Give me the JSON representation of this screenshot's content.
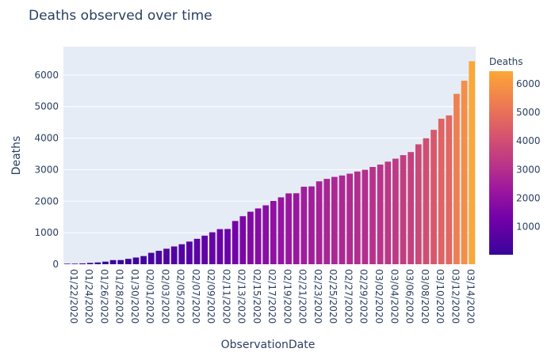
{
  "chart_data": {
    "type": "bar",
    "title": "Deaths observed over time",
    "xlabel": "ObservationDate",
    "ylabel": "Deaths",
    "colorbar_title": "Deaths",
    "ylim": [
      0,
      6900
    ],
    "yticks": [
      0,
      1000,
      2000,
      3000,
      4000,
      5000,
      6000
    ],
    "grid": true,
    "categories": [
      "01/22/2020",
      "01/23/2020",
      "01/24/2020",
      "01/25/2020",
      "01/26/2020",
      "01/27/2020",
      "01/28/2020",
      "01/29/2020",
      "01/30/2020",
      "01/31/2020",
      "02/01/2020",
      "02/02/2020",
      "02/03/2020",
      "02/04/2020",
      "02/05/2020",
      "02/06/2020",
      "02/07/2020",
      "02/08/2020",
      "02/09/2020",
      "02/10/2020",
      "02/11/2020",
      "02/12/2020",
      "02/13/2020",
      "02/14/2020",
      "02/15/2020",
      "02/16/2020",
      "02/17/2020",
      "02/18/2020",
      "02/19/2020",
      "02/20/2020",
      "02/21/2020",
      "02/22/2020",
      "02/23/2020",
      "02/24/2020",
      "02/25/2020",
      "02/26/2020",
      "02/27/2020",
      "02/28/2020",
      "02/29/2020",
      "03/01/2020",
      "03/02/2020",
      "03/03/2020",
      "03/04/2020",
      "03/05/2020",
      "03/06/2020",
      "03/07/2020",
      "03/08/2020",
      "03/09/2020",
      "03/10/2020",
      "03/11/2020",
      "03/12/2020",
      "03/13/2020",
      "03/14/2020",
      "03/15/2020"
    ],
    "xtick_labels": [
      "01/22/2020",
      "01/24/2020",
      "01/26/2020",
      "01/28/2020",
      "01/30/2020",
      "02/01/2020",
      "02/03/2020",
      "02/05/2020",
      "02/07/2020",
      "02/09/2020",
      "02/11/2020",
      "02/13/2020",
      "02/15/2020",
      "02/17/2020",
      "02/19/2020",
      "02/21/2020",
      "02/23/2020",
      "02/25/2020",
      "02/27/2020",
      "02/29/2020",
      "03/02/2020",
      "03/04/2020",
      "03/06/2020",
      "03/08/2020",
      "03/10/2020",
      "03/12/2020",
      "03/14/2020"
    ],
    "values": [
      17,
      18,
      26,
      42,
      56,
      82,
      131,
      133,
      171,
      213,
      259,
      362,
      426,
      492,
      564,
      634,
      719,
      806,
      906,
      1013,
      1113,
      1118,
      1371,
      1523,
      1666,
      1770,
      1868,
      2007,
      2122,
      2247,
      2251,
      2458,
      2469,
      2629,
      2708,
      2770,
      2814,
      2872,
      2941,
      2996,
      3085,
      3160,
      3254,
      3348,
      3460,
      3558,
      3803,
      3996,
      4262,
      4615,
      4720,
      5404,
      5819,
      6440
    ],
    "colorscale": "plasma",
    "colorbar_ticks": [
      1000,
      2000,
      3000,
      4000,
      5000,
      6000
    ]
  }
}
